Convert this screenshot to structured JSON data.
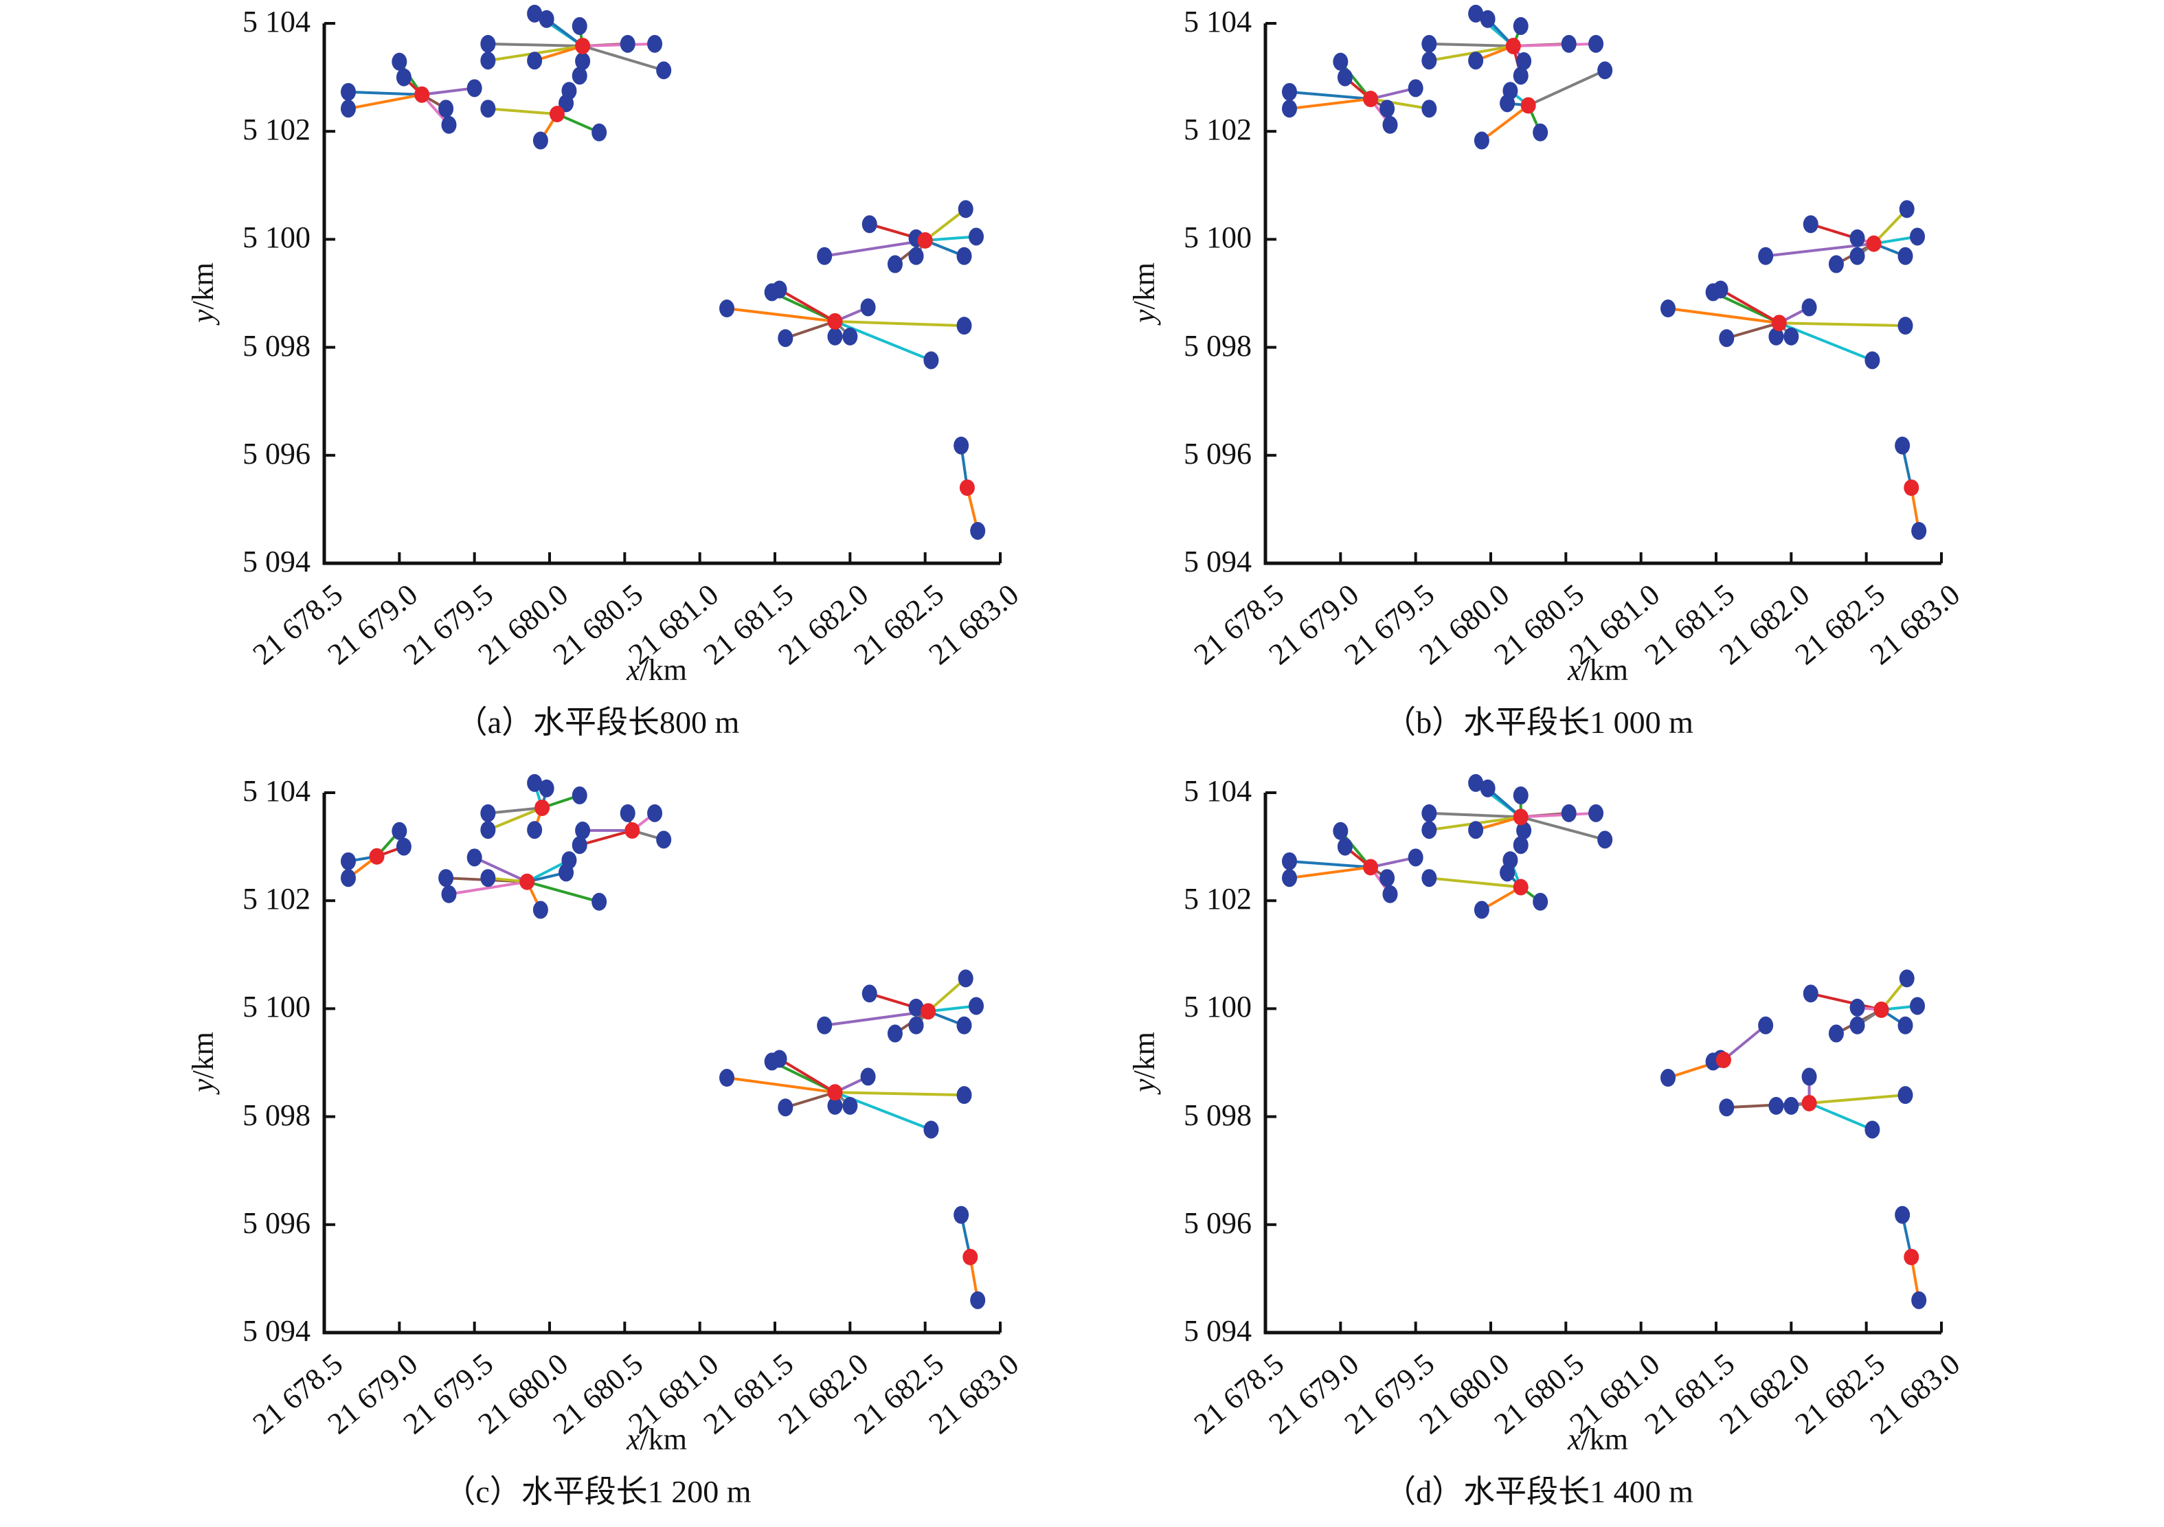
{
  "chart_data": {
    "type": "scatter",
    "description": "Well-to-platform assignment maps for different horizontal section lengths",
    "xlabel": "x/km",
    "ylabel": "y/km",
    "xlim": [
      21678.5,
      21683.0
    ],
    "ylim": [
      5094,
      5104
    ],
    "xticks": [
      "21 678.5",
      "21 679.0",
      "21 679.5",
      "21 680.0",
      "21 680.5",
      "21 681.0",
      "21 681.5",
      "21 682.0",
      "21 682.5",
      "21 683.0"
    ],
    "xtick_values": [
      21678.5,
      21679.0,
      21679.5,
      21680.0,
      21680.5,
      21681.0,
      21681.5,
      21682.0,
      21682.5,
      21683.0
    ],
    "yticks": [
      "5 094",
      "5 096",
      "5 098",
      "5 100",
      "5 102",
      "5 104"
    ],
    "ytick_values": [
      5094,
      5096,
      5098,
      5100,
      5102,
      5104
    ],
    "grid": false,
    "legend": "none",
    "marker_colors": {
      "well": "#2b3fa0",
      "platform": "#e8252a"
    },
    "line_colors": [
      "#1f77b4",
      "#ff7f0e",
      "#2ca02c",
      "#d62728",
      "#9467bd",
      "#8c564b",
      "#e377c2",
      "#7f7f7f",
      "#bcbd22",
      "#17becf"
    ],
    "wells": [
      [
        21678.66,
        5102.73
      ],
      [
        21678.66,
        5102.42
      ],
      [
        21679.0,
        5103.29
      ],
      [
        21679.03,
        5103.0
      ],
      [
        21679.5,
        5102.8
      ],
      [
        21679.31,
        5102.42
      ],
      [
        21679.33,
        5102.12
      ],
      [
        21679.59,
        5103.62
      ],
      [
        21679.59,
        5103.31
      ],
      [
        21679.9,
        5104.18
      ],
      [
        21679.98,
        5104.08
      ],
      [
        21679.9,
        5103.31
      ],
      [
        21680.2,
        5103.95
      ],
      [
        21680.2,
        5103.03
      ],
      [
        21680.22,
        5103.3
      ],
      [
        21680.52,
        5103.62
      ],
      [
        21680.7,
        5103.62
      ],
      [
        21680.76,
        5103.13
      ],
      [
        21679.59,
        5102.42
      ],
      [
        21680.13,
        5102.75
      ],
      [
        21680.11,
        5102.52
      ],
      [
        21679.94,
        5101.83
      ],
      [
        21680.33,
        5101.98
      ],
      [
        21682.13,
        5100.28
      ],
      [
        21681.83,
        5099.69
      ],
      [
        21682.3,
        5099.54
      ],
      [
        21682.44,
        5100.02
      ],
      [
        21682.44,
        5099.69
      ],
      [
        21682.77,
        5100.56
      ],
      [
        21682.84,
        5100.05
      ],
      [
        21682.76,
        5099.69
      ],
      [
        21681.18,
        5098.72
      ],
      [
        21681.48,
        5099.02
      ],
      [
        21681.53,
        5099.07
      ],
      [
        21682.12,
        5098.74
      ],
      [
        21681.57,
        5098.17
      ],
      [
        21681.9,
        5098.2
      ],
      [
        21682.0,
        5098.2
      ],
      [
        21682.76,
        5098.4
      ],
      [
        21682.54,
        5097.76
      ],
      [
        21682.74,
        5096.18
      ],
      [
        21682.85,
        5094.6
      ]
    ],
    "panels": [
      {
        "id": "a",
        "caption": "（a）水平段长800 m",
        "platforms": [
          [
            21679.15,
            5102.68
          ],
          [
            21680.22,
            5103.58
          ],
          [
            21680.05,
            5102.32
          ],
          [
            21682.5,
            5099.98
          ],
          [
            21681.9,
            5098.48
          ],
          [
            21682.78,
            5095.4
          ]
        ],
        "assignment": [
          0,
          0,
          0,
          0,
          0,
          0,
          0,
          1,
          1,
          1,
          1,
          1,
          1,
          1,
          1,
          1,
          1,
          1,
          2,
          2,
          2,
          2,
          2,
          3,
          3,
          3,
          3,
          3,
          3,
          3,
          3,
          4,
          4,
          4,
          4,
          4,
          4,
          4,
          4,
          4,
          5,
          5
        ]
      },
      {
        "id": "b",
        "caption": "（b）水平段长1 000 m",
        "platforms": [
          [
            21679.2,
            5102.6
          ],
          [
            21680.15,
            5103.58
          ],
          [
            21680.25,
            5102.48
          ],
          [
            21682.55,
            5099.92
          ],
          [
            21681.92,
            5098.45
          ],
          [
            21682.8,
            5095.4
          ]
        ],
        "assignment": [
          0,
          0,
          0,
          0,
          0,
          0,
          0,
          1,
          1,
          1,
          1,
          1,
          1,
          1,
          1,
          1,
          1,
          2,
          0,
          2,
          2,
          2,
          2,
          3,
          3,
          3,
          3,
          3,
          3,
          3,
          3,
          4,
          4,
          4,
          4,
          4,
          4,
          4,
          4,
          4,
          5,
          5
        ]
      },
      {
        "id": "c",
        "caption": "（c）水平段长1 200 m",
        "platforms": [
          [
            21678.85,
            5102.82
          ],
          [
            21679.95,
            5103.72
          ],
          [
            21679.85,
            5102.35
          ],
          [
            21680.55,
            5103.3
          ],
          [
            21682.52,
            5099.95
          ],
          [
            21681.9,
            5098.45
          ],
          [
            21682.8,
            5095.4
          ]
        ],
        "assignment": [
          0,
          0,
          0,
          0,
          2,
          2,
          2,
          1,
          1,
          1,
          1,
          1,
          1,
          3,
          3,
          3,
          3,
          3,
          2,
          2,
          2,
          2,
          2,
          4,
          4,
          4,
          4,
          4,
          4,
          4,
          4,
          5,
          5,
          5,
          5,
          5,
          5,
          5,
          5,
          5,
          6,
          6
        ]
      },
      {
        "id": "d",
        "caption": "（d）水平段长1 400 m",
        "platforms": [
          [
            21679.2,
            5102.62
          ],
          [
            21680.2,
            5103.55
          ],
          [
            21680.2,
            5102.25
          ],
          [
            21682.6,
            5099.98
          ],
          [
            21681.55,
            5099.05
          ],
          [
            21682.12,
            5098.25
          ],
          [
            21682.8,
            5095.4
          ]
        ],
        "assignment": [
          0,
          0,
          0,
          0,
          0,
          0,
          0,
          1,
          1,
          1,
          1,
          1,
          1,
          1,
          1,
          1,
          1,
          1,
          2,
          2,
          2,
          2,
          2,
          3,
          4,
          3,
          3,
          3,
          3,
          3,
          3,
          4,
          4,
          4,
          5,
          5,
          5,
          5,
          5,
          5,
          6,
          6
        ]
      }
    ]
  }
}
